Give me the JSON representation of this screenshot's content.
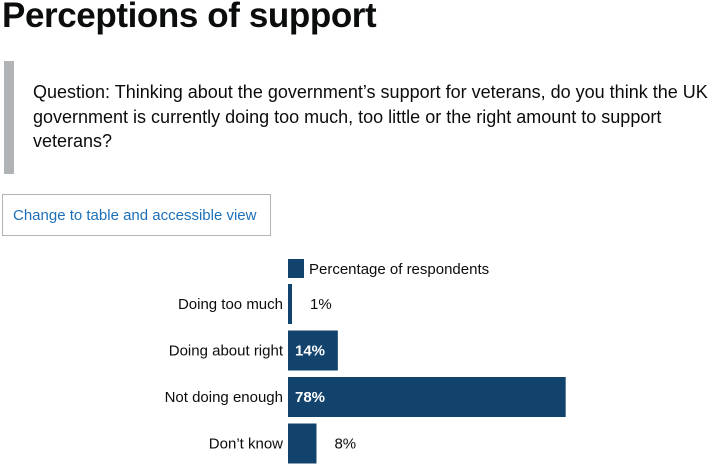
{
  "page": {
    "title": "Perceptions of support",
    "question": "Question: Thinking about the government’s support for veterans, do you think the UK government is currently doing too much, too little or the right amount to support veterans?",
    "toggle_label": "Change to table and accessible view"
  },
  "colors": {
    "bar": "#12436d",
    "label_inside": "#ffffff",
    "label_outside": "#0b0c0c",
    "inset_border": "#b1b4b6",
    "link": "#1d70b8"
  },
  "chart_data": {
    "type": "bar",
    "orientation": "horizontal",
    "categories": [
      "Doing too much",
      "Doing about right",
      "Not doing enough",
      "Don’t know"
    ],
    "series": [
      {
        "name": "Percentage of respondents",
        "values": [
          1,
          14,
          78,
          8
        ]
      }
    ],
    "value_labels": [
      "1%",
      "14%",
      "78%",
      "8%"
    ],
    "legend": "top",
    "grid": false,
    "xlim": [
      0,
      100
    ]
  }
}
